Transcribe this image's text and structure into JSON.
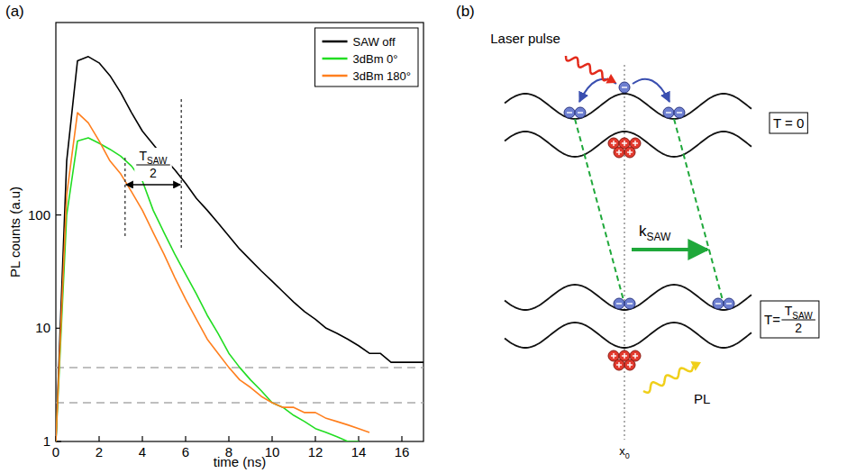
{
  "chart_data": {
    "type": "line",
    "panel_label": "(a)",
    "x_label": "time (ns)",
    "y_label": "PL counts (a.u)",
    "x": [
      0,
      0.5,
      1,
      1.5,
      2,
      2.5,
      3,
      3.5,
      4,
      4.5,
      5,
      5.5,
      6,
      6.5,
      7,
      7.5,
      8,
      8.5,
      9,
      9.5,
      10,
      10.5,
      11,
      11.5,
      12,
      12.5,
      13,
      13.5,
      14,
      14.5,
      15,
      15.5,
      16,
      16.5,
      17
    ],
    "xlim": [
      0,
      17
    ],
    "xticks": [
      0,
      2,
      4,
      6,
      8,
      10,
      12,
      14,
      16
    ],
    "ylim": [
      1,
      5000
    ],
    "yticks": [
      1,
      10,
      100
    ],
    "log": "y",
    "legend": "top-right",
    "series": [
      {
        "name": "SAW off",
        "color": "#000000",
        "values": [
          1,
          300,
          2300,
          2500,
          2200,
          1700,
          1200,
          800,
          550,
          420,
          320,
          250,
          190,
          140,
          110,
          85,
          65,
          50,
          40,
          32,
          26,
          21,
          17,
          14,
          12,
          10,
          9,
          8,
          7,
          6,
          6,
          5,
          5,
          5,
          5
        ]
      },
      {
        "name": "3dBm 0°",
        "color": "#22dd22",
        "values": [
          1,
          100,
          450,
          480,
          430,
          380,
          330,
          270,
          200,
          110,
          70,
          45,
          30,
          20,
          13,
          9,
          6,
          4.5,
          3.5,
          2.8,
          2.2,
          2,
          1.7,
          1.5,
          1.3,
          1.2,
          1.1,
          1,
          1,
          null,
          null,
          null,
          null,
          null,
          null
        ]
      },
      {
        "name": "3dBm 180°",
        "color": "#ff7f1e",
        "values": [
          1,
          150,
          800,
          650,
          450,
          300,
          230,
          160,
          110,
          70,
          45,
          28,
          18,
          12,
          8,
          6,
          4.5,
          3.5,
          3,
          2.5,
          2.2,
          2,
          2,
          1.8,
          1.8,
          1.6,
          1.5,
          1.4,
          1.3,
          1.2,
          null,
          null,
          null,
          null,
          null
        ]
      }
    ],
    "reference_lines": [
      4.5,
      2.2
    ],
    "annotations": [
      {
        "text": "T",
        "subscript": "SAW",
        "denominator": "2",
        "x": [
          3.2,
          5.8
        ],
        "y": 185
      }
    ]
  },
  "diagram": {
    "panel_label": "(b)",
    "laser_label": "Laser pulse",
    "time_labels": [
      {
        "text": "T = 0"
      },
      {
        "text": "T=",
        "fraction": {
          "text": "T",
          "subscript": "SAW",
          "denominator": "2"
        }
      }
    ],
    "wave_vector": {
      "text": "k",
      "subscript": "SAW"
    },
    "emission_label": "PL",
    "position_label": {
      "text": "x",
      "subscript": "0"
    }
  }
}
